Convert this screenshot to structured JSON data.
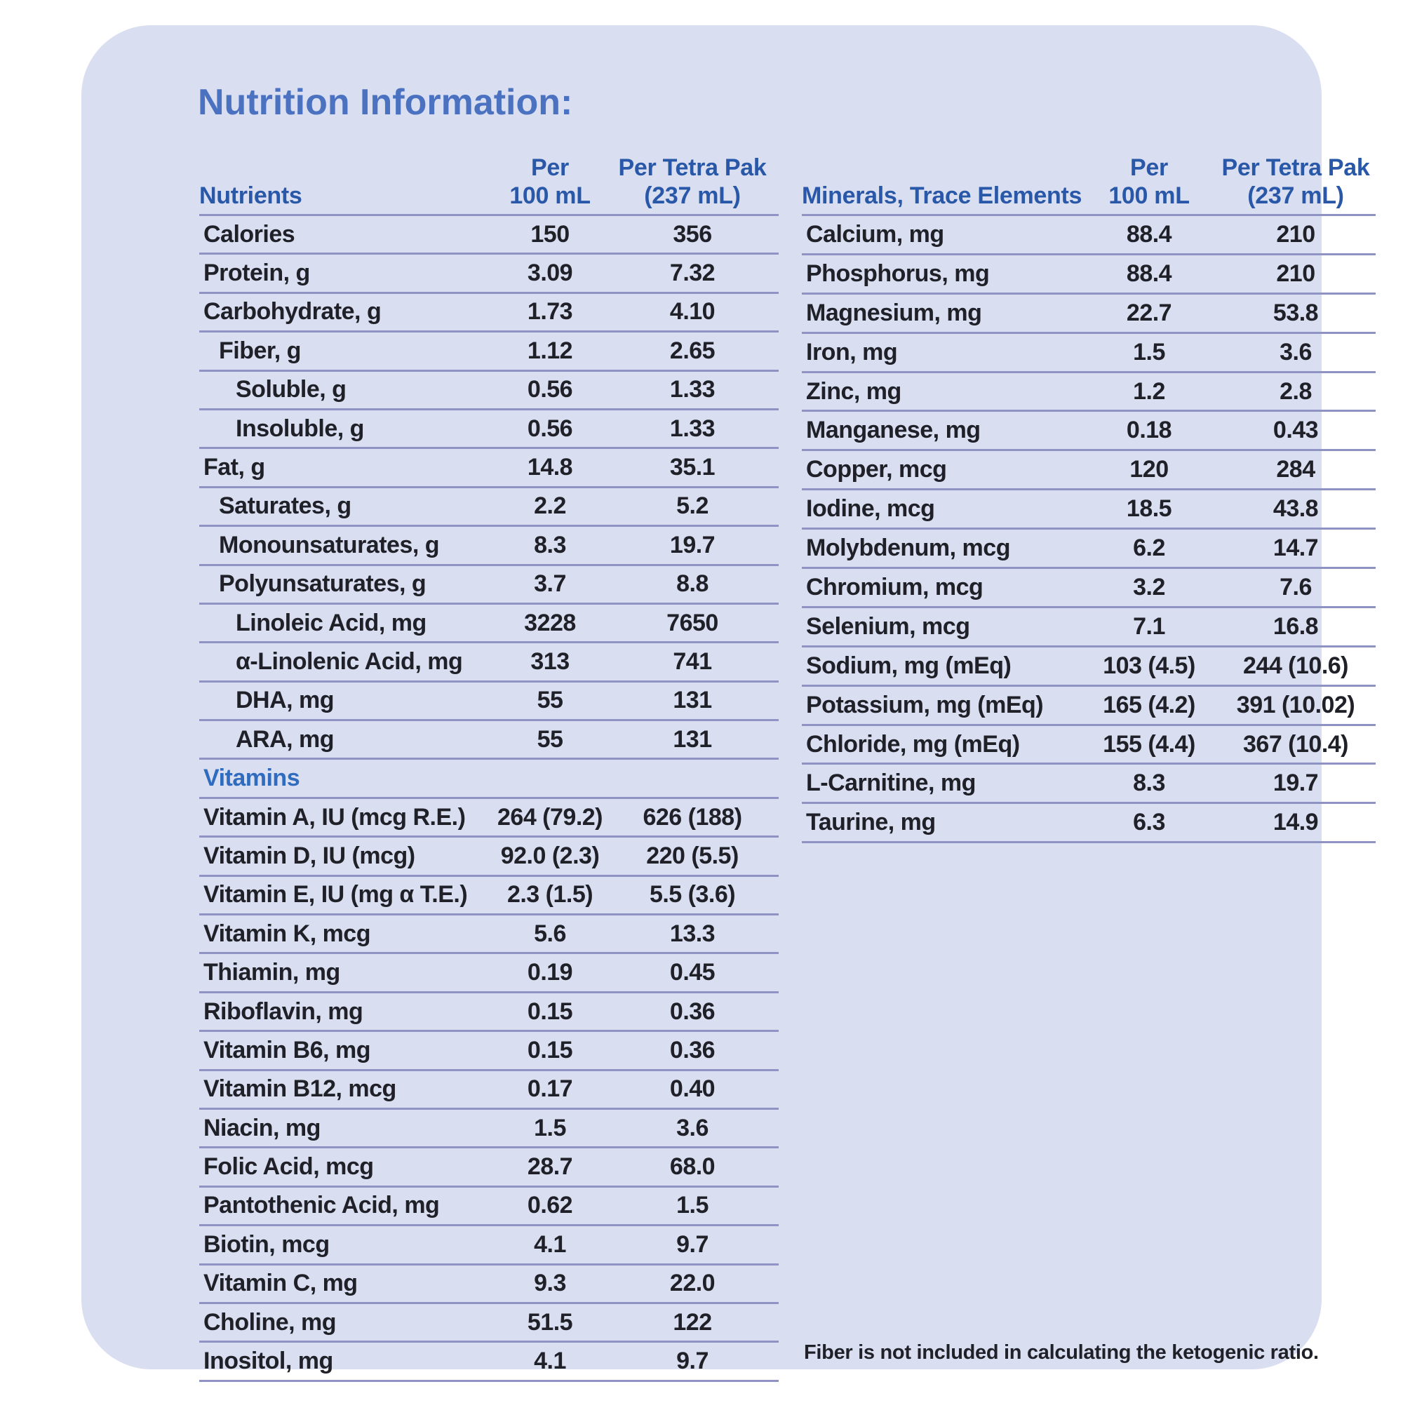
{
  "title": "Nutrition Information:",
  "colors": {
    "card_background": "#d9def0",
    "separator_line": "#8f93c4",
    "column_header_blue": "#2a58a8",
    "section_header_blue": "#2f6cc0",
    "title_blue": "#4a72c0",
    "body_text": "#1f2028"
  },
  "tables": {
    "nutrients": {
      "header": {
        "col1": "Nutrients",
        "col2_line1": "Per",
        "col2_line2": "100 mL",
        "col3_line1": "Per Tetra Pak",
        "col3_line2": "(237 mL)"
      },
      "rows": [
        {
          "label": "Calories",
          "indent": 0,
          "per100": "150",
          "tetra": "356"
        },
        {
          "label": "Protein, g",
          "indent": 0,
          "per100": "3.09",
          "tetra": "7.32"
        },
        {
          "label": "Carbohydrate, g",
          "indent": 0,
          "per100": "1.73",
          "tetra": "4.10"
        },
        {
          "label": "Fiber, g",
          "indent": 1,
          "per100": "1.12",
          "tetra": "2.65"
        },
        {
          "label": "Soluble, g",
          "indent": 2,
          "per100": "0.56",
          "tetra": "1.33"
        },
        {
          "label": "Insoluble, g",
          "indent": 2,
          "per100": "0.56",
          "tetra": "1.33"
        },
        {
          "label": "Fat, g",
          "indent": 0,
          "per100": "14.8",
          "tetra": "35.1"
        },
        {
          "label": "Saturates, g",
          "indent": 1,
          "per100": "2.2",
          "tetra": "5.2"
        },
        {
          "label": "Monounsaturates, g",
          "indent": 1,
          "per100": "8.3",
          "tetra": "19.7"
        },
        {
          "label": "Polyunsaturates, g",
          "indent": 1,
          "per100": "3.7",
          "tetra": "8.8"
        },
        {
          "label": "Linoleic Acid, mg",
          "indent": 2,
          "per100": "3228",
          "tetra": "7650"
        },
        {
          "label": "α-Linolenic Acid, mg",
          "indent": 2,
          "per100": "313",
          "tetra": "741"
        },
        {
          "label": "DHA, mg",
          "indent": 2,
          "per100": "55",
          "tetra": "131"
        },
        {
          "label": "ARA, mg",
          "indent": 2,
          "per100": "55",
          "tetra": "131"
        },
        {
          "label": "Vitamins",
          "section": true
        },
        {
          "label": "Vitamin A, IU (mcg R.E.)",
          "indent": 0,
          "per100": "264 (79.2)",
          "tetra": "626 (188)"
        },
        {
          "label": "Vitamin D, IU (mcg)",
          "indent": 0,
          "per100": "92.0 (2.3)",
          "tetra": "220 (5.5)"
        },
        {
          "label": "Vitamin E, IU (mg α T.E.)",
          "indent": 0,
          "per100": "2.3 (1.5)",
          "tetra": "5.5 (3.6)"
        },
        {
          "label": "Vitamin K, mcg",
          "indent": 0,
          "per100": "5.6",
          "tetra": "13.3"
        },
        {
          "label": "Thiamin, mg",
          "indent": 0,
          "per100": "0.19",
          "tetra": "0.45"
        },
        {
          "label": "Riboflavin, mg",
          "indent": 0,
          "per100": "0.15",
          "tetra": "0.36"
        },
        {
          "label": "Vitamin B6, mg",
          "indent": 0,
          "per100": "0.15",
          "tetra": "0.36"
        },
        {
          "label": "Vitamin B12, mcg",
          "indent": 0,
          "per100": "0.17",
          "tetra": "0.40"
        },
        {
          "label": "Niacin, mg",
          "indent": 0,
          "per100": "1.5",
          "tetra": "3.6"
        },
        {
          "label": "Folic Acid, mcg",
          "indent": 0,
          "per100": "28.7",
          "tetra": "68.0"
        },
        {
          "label": "Pantothenic Acid, mg",
          "indent": 0,
          "per100": "0.62",
          "tetra": "1.5"
        },
        {
          "label": "Biotin, mcg",
          "indent": 0,
          "per100": "4.1",
          "tetra": "9.7"
        },
        {
          "label": "Vitamin C, mg",
          "indent": 0,
          "per100": "9.3",
          "tetra": "22.0"
        },
        {
          "label": "Choline, mg",
          "indent": 0,
          "per100": "51.5",
          "tetra": "122"
        },
        {
          "label": "Inositol, mg",
          "indent": 0,
          "per100": "4.1",
          "tetra": "9.7"
        }
      ]
    },
    "minerals": {
      "header": {
        "col1": "Minerals, Trace Elements",
        "col2_line1": "Per",
        "col2_line2": "100 mL",
        "col3_line1": "Per Tetra Pak",
        "col3_line2": "(237 mL)"
      },
      "rows": [
        {
          "label": "Calcium, mg",
          "indent": 0,
          "per100": "88.4",
          "tetra": "210"
        },
        {
          "label": "Phosphorus, mg",
          "indent": 0,
          "per100": "88.4",
          "tetra": "210"
        },
        {
          "label": "Magnesium, mg",
          "indent": 0,
          "per100": "22.7",
          "tetra": "53.8"
        },
        {
          "label": "Iron, mg",
          "indent": 0,
          "per100": "1.5",
          "tetra": "3.6"
        },
        {
          "label": "Zinc, mg",
          "indent": 0,
          "per100": "1.2",
          "tetra": "2.8"
        },
        {
          "label": "Manganese, mg",
          "indent": 0,
          "per100": "0.18",
          "tetra": "0.43"
        },
        {
          "label": "Copper, mcg",
          "indent": 0,
          "per100": "120",
          "tetra": "284"
        },
        {
          "label": "Iodine, mcg",
          "indent": 0,
          "per100": "18.5",
          "tetra": "43.8"
        },
        {
          "label": "Molybdenum, mcg",
          "indent": 0,
          "per100": "6.2",
          "tetra": "14.7"
        },
        {
          "label": "Chromium, mcg",
          "indent": 0,
          "per100": "3.2",
          "tetra": "7.6"
        },
        {
          "label": "Selenium, mcg",
          "indent": 0,
          "per100": "7.1",
          "tetra": "16.8"
        },
        {
          "label": "Sodium, mg (mEq)",
          "indent": 0,
          "per100": "103 (4.5)",
          "tetra": "244 (10.6)"
        },
        {
          "label": "Potassium, mg (mEq)",
          "indent": 0,
          "per100": "165 (4.2)",
          "tetra": "391 (10.02)"
        },
        {
          "label": "Chloride, mg (mEq)",
          "indent": 0,
          "per100": "155 (4.4)",
          "tetra": "367 (10.4)"
        },
        {
          "label": "L-Carnitine, mg",
          "indent": 0,
          "per100": "8.3",
          "tetra": "19.7"
        },
        {
          "label": "Taurine, mg",
          "indent": 0,
          "per100": "6.3",
          "tetra": "14.9"
        }
      ]
    }
  },
  "footnote": "Fiber is not included in calculating the ketogenic ratio."
}
